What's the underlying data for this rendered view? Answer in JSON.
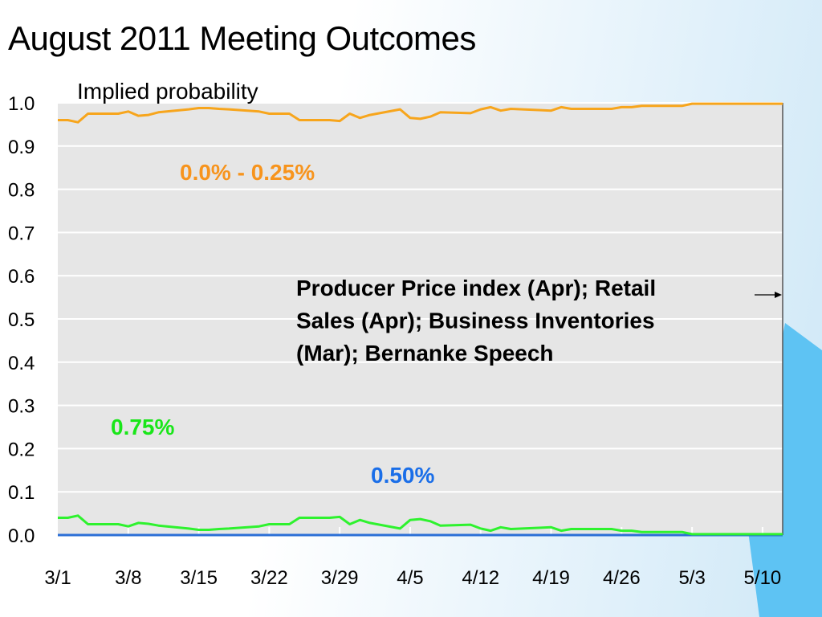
{
  "slide": {
    "title": "August 2011 Meeting Outcomes"
  },
  "chart_data": {
    "type": "line",
    "subtitle": "Implied probability",
    "ylim": [
      0,
      1
    ],
    "yticks": [
      "0.0",
      "0.1",
      "0.2",
      "0.3",
      "0.4",
      "0.5",
      "0.6",
      "0.7",
      "0.8",
      "0.9",
      "1.0"
    ],
    "x_range": [
      "3/1",
      "5/12"
    ],
    "xticks": [
      "3/1",
      "3/8",
      "3/15",
      "3/22",
      "3/29",
      "4/5",
      "4/12",
      "4/19",
      "4/26",
      "5/3",
      "5/10"
    ],
    "grid": "horizontal",
    "colors": {
      "plot_background": "#e6e6e6",
      "grid": "#ffffff"
    },
    "series": [
      {
        "name": "0.0% - 0.25%",
        "color": "#f7a51c",
        "label_color": "#f7941d",
        "points": [
          [
            "3/1",
            0.96
          ],
          [
            "3/2",
            0.96
          ],
          [
            "3/3",
            0.955
          ],
          [
            "3/4",
            0.975
          ],
          [
            "3/7",
            0.975
          ],
          [
            "3/8",
            0.98
          ],
          [
            "3/9",
            0.97
          ],
          [
            "3/10",
            0.972
          ],
          [
            "3/11",
            0.978
          ],
          [
            "3/14",
            0.985
          ],
          [
            "3/15",
            0.988
          ],
          [
            "3/16",
            0.988
          ],
          [
            "3/17",
            0.986
          ],
          [
            "3/18",
            0.985
          ],
          [
            "3/21",
            0.98
          ],
          [
            "3/22",
            0.975
          ],
          [
            "3/23",
            0.975
          ],
          [
            "3/24",
            0.975
          ],
          [
            "3/25",
            0.96
          ],
          [
            "3/28",
            0.96
          ],
          [
            "3/29",
            0.958
          ],
          [
            "3/30",
            0.975
          ],
          [
            "3/31",
            0.965
          ],
          [
            "4/1",
            0.972
          ],
          [
            "4/4",
            0.985
          ],
          [
            "4/5",
            0.965
          ],
          [
            "4/6",
            0.963
          ],
          [
            "4/7",
            0.968
          ],
          [
            "4/8",
            0.978
          ],
          [
            "4/11",
            0.976
          ],
          [
            "4/12",
            0.985
          ],
          [
            "4/13",
            0.99
          ],
          [
            "4/14",
            0.982
          ],
          [
            "4/15",
            0.986
          ],
          [
            "4/18",
            0.983
          ],
          [
            "4/19",
            0.982
          ],
          [
            "4/20",
            0.99
          ],
          [
            "4/21",
            0.986
          ],
          [
            "4/22",
            0.986
          ],
          [
            "4/25",
            0.986
          ],
          [
            "4/26",
            0.99
          ],
          [
            "4/27",
            0.99
          ],
          [
            "4/28",
            0.993
          ],
          [
            "4/29",
            0.993
          ],
          [
            "5/2",
            0.993
          ],
          [
            "5/3",
            0.998
          ],
          [
            "5/4",
            0.998
          ],
          [
            "5/5",
            0.998
          ],
          [
            "5/6",
            0.998
          ],
          [
            "5/9",
            0.998
          ],
          [
            "5/10",
            0.998
          ],
          [
            "5/11",
            0.998
          ],
          [
            "5/12",
            0.998
          ]
        ]
      },
      {
        "name": "0.50%",
        "color": "#2b6fd6",
        "label_color": "#1a6ee8",
        "points": [
          [
            "3/1",
            0.0
          ],
          [
            "5/12",
            0.0
          ]
        ]
      },
      {
        "name": "0.75%",
        "color": "#2ef22e",
        "label_color": "#19e619",
        "points": [
          [
            "3/1",
            0.04
          ],
          [
            "3/2",
            0.04
          ],
          [
            "3/3",
            0.045
          ],
          [
            "3/4",
            0.025
          ],
          [
            "3/7",
            0.025
          ],
          [
            "3/8",
            0.02
          ],
          [
            "3/9",
            0.028
          ],
          [
            "3/10",
            0.026
          ],
          [
            "3/11",
            0.022
          ],
          [
            "3/14",
            0.015
          ],
          [
            "3/15",
            0.012
          ],
          [
            "3/16",
            0.012
          ],
          [
            "3/17",
            0.014
          ],
          [
            "3/18",
            0.015
          ],
          [
            "3/21",
            0.02
          ],
          [
            "3/22",
            0.025
          ],
          [
            "3/23",
            0.025
          ],
          [
            "3/24",
            0.025
          ],
          [
            "3/25",
            0.04
          ],
          [
            "3/28",
            0.04
          ],
          [
            "3/29",
            0.042
          ],
          [
            "3/30",
            0.025
          ],
          [
            "3/31",
            0.035
          ],
          [
            "4/1",
            0.028
          ],
          [
            "4/4",
            0.015
          ],
          [
            "4/5",
            0.035
          ],
          [
            "4/6",
            0.037
          ],
          [
            "4/7",
            0.032
          ],
          [
            "4/8",
            0.022
          ],
          [
            "4/11",
            0.024
          ],
          [
            "4/12",
            0.015
          ],
          [
            "4/13",
            0.01
          ],
          [
            "4/14",
            0.018
          ],
          [
            "4/15",
            0.014
          ],
          [
            "4/18",
            0.017
          ],
          [
            "4/19",
            0.018
          ],
          [
            "4/20",
            0.01
          ],
          [
            "4/21",
            0.014
          ],
          [
            "4/22",
            0.014
          ],
          [
            "4/25",
            0.014
          ],
          [
            "4/26",
            0.01
          ],
          [
            "4/27",
            0.01
          ],
          [
            "4/28",
            0.007
          ],
          [
            "4/29",
            0.007
          ],
          [
            "5/2",
            0.007
          ],
          [
            "5/3",
            0.002
          ],
          [
            "5/4",
            0.002
          ],
          [
            "5/5",
            0.002
          ],
          [
            "5/6",
            0.002
          ],
          [
            "5/9",
            0.002
          ],
          [
            "5/10",
            0.002
          ],
          [
            "5/11",
            0.002
          ],
          [
            "5/12",
            0.002
          ]
        ]
      }
    ],
    "annotations": [
      {
        "lines": [
          "Producer Price index (Apr); Retail",
          "Sales (Apr); Business Inventories",
          "(Mar); Bernanke Speech"
        ],
        "arrow_to": "5/12"
      }
    ]
  }
}
